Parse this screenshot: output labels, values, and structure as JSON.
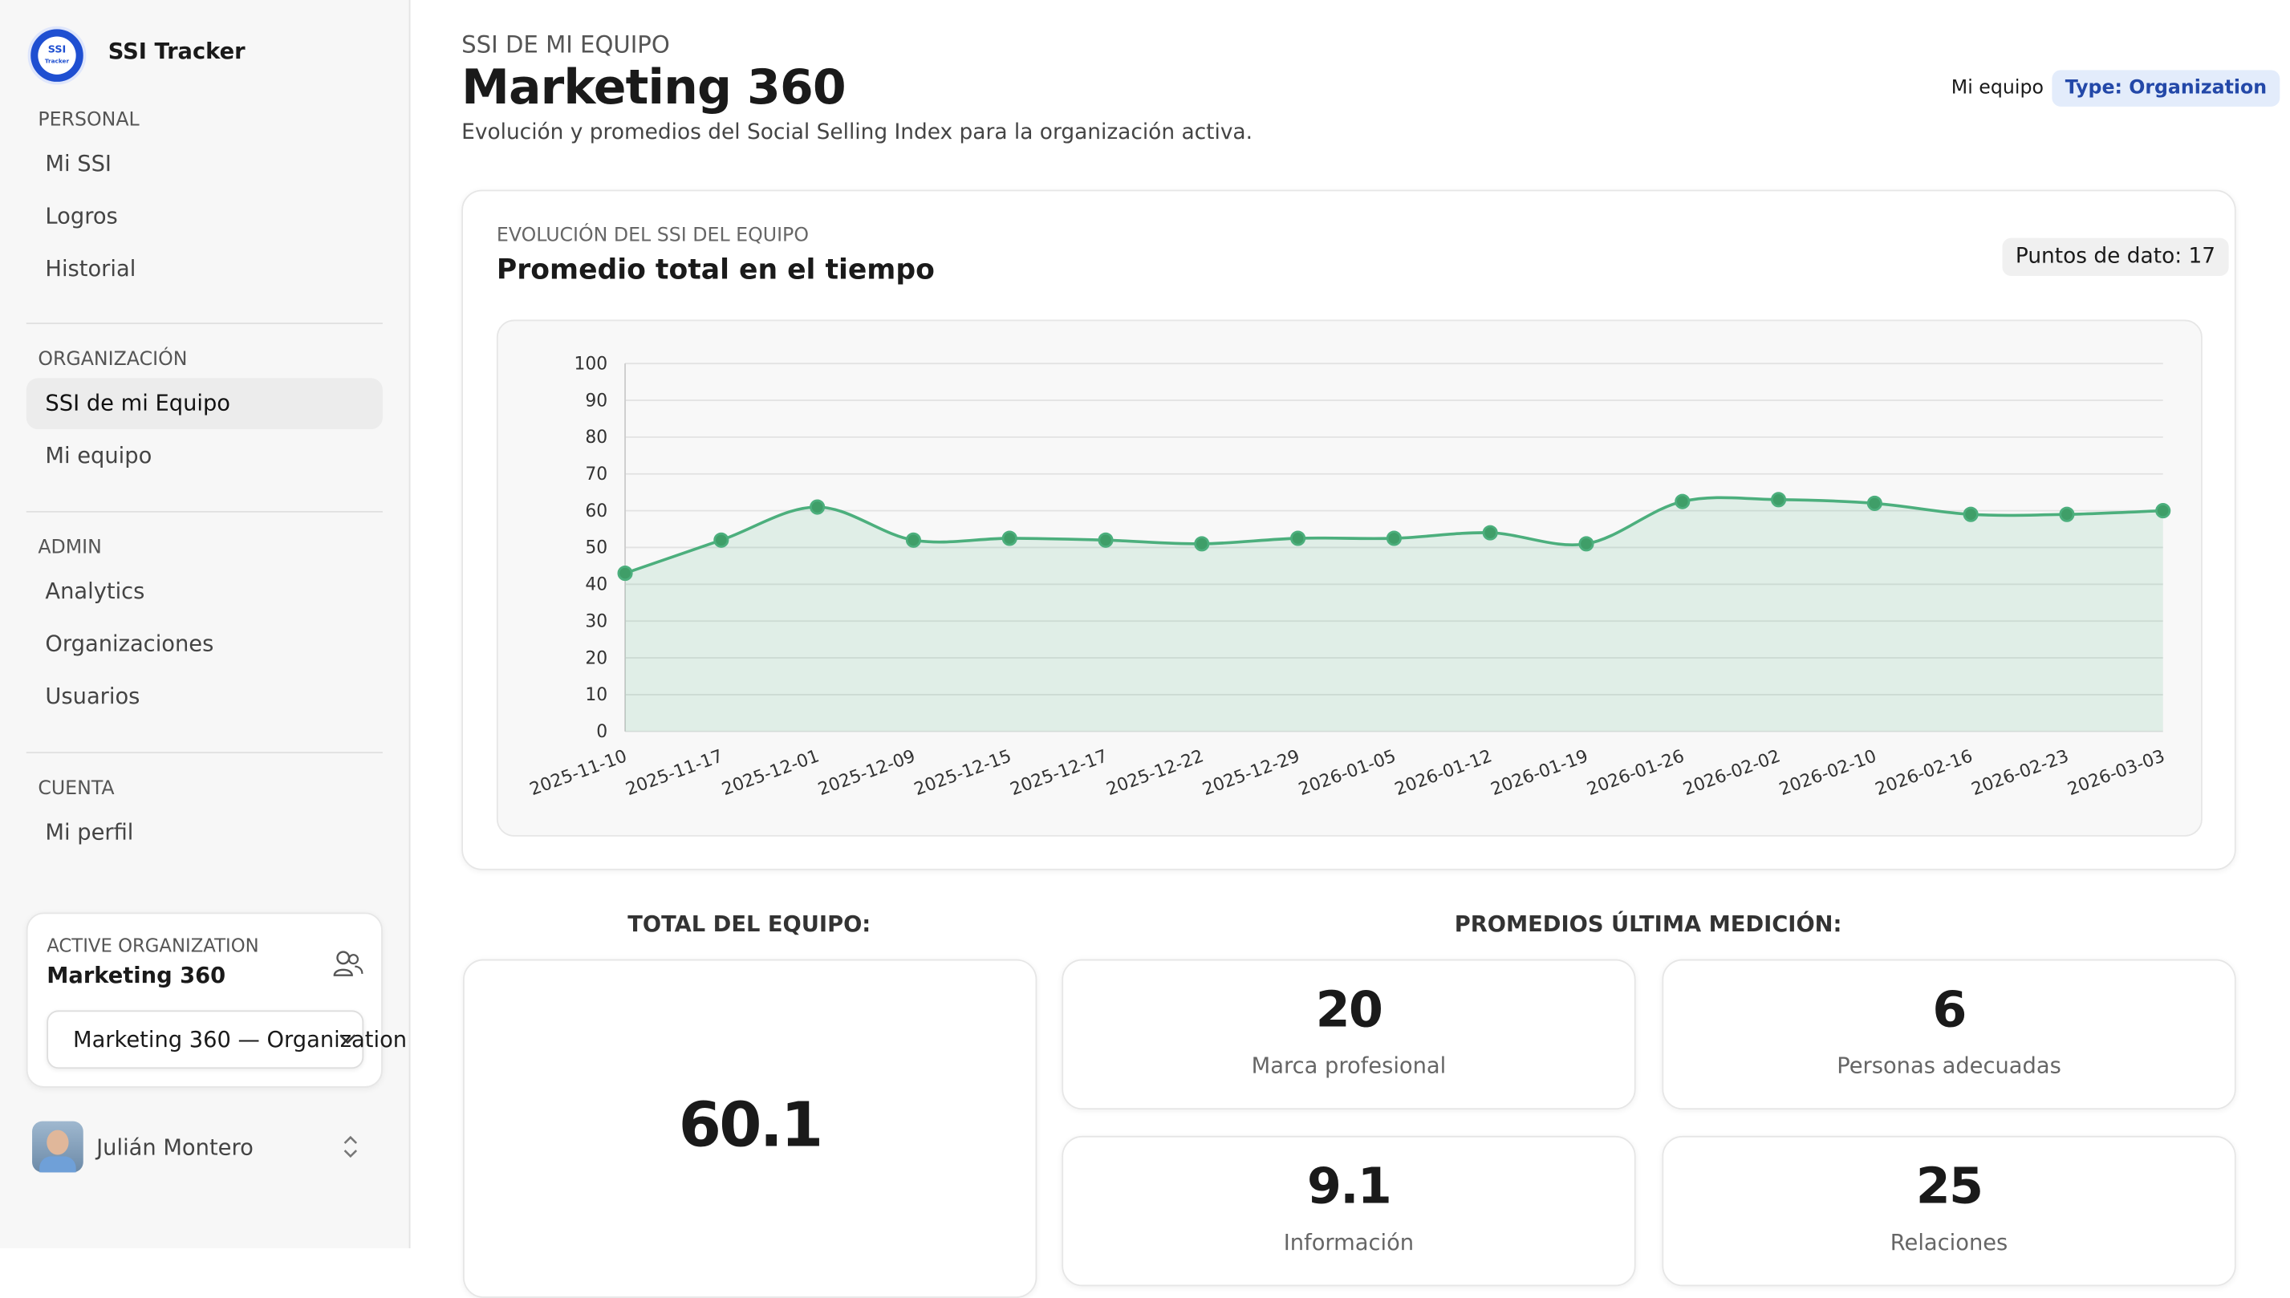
{
  "sidebar": {
    "logo": [
      "SSI",
      "Tracker"
    ],
    "brand": "SSI Tracker",
    "sections": [
      {
        "title": "PERSONAL",
        "items": [
          "Mi SSI",
          "Logros",
          "Historial"
        ]
      },
      {
        "title": "ORGANIZACIÓN",
        "items": [
          "SSI de mi Equipo",
          "Mi equipo"
        ]
      },
      {
        "title": "ADMIN",
        "items": [
          "Analytics",
          "Organizaciones",
          "Usuarios"
        ]
      },
      {
        "title": "CUENTA",
        "items": [
          "Mi perfil"
        ]
      }
    ],
    "active_org": {
      "label": "ACTIVE ORGANIZATION",
      "name": "Marketing 360",
      "select": "Marketing 360 — Organization"
    },
    "user": "Julián Montero"
  },
  "header": {
    "eyebrow": "SSI DE MI EQUIPO",
    "title": "Marketing 360",
    "subtitle": "Evolución y promedios del Social Selling Index para la organización activa.",
    "link": "Mi equipo",
    "badge": "Type: Organization"
  },
  "chart_data": {
    "type": "line",
    "eyebrow": "EVOLUCIÓN DEL SSI DEL EQUIPO",
    "title": "Promedio total en el tiempo",
    "badge": "Puntos de dato: 17",
    "categories": [
      "2025-11-10",
      "2025-11-17",
      "2025-12-01",
      "2025-12-09",
      "2025-12-15",
      "2025-12-17",
      "2025-12-22",
      "2025-12-29",
      "2026-01-05",
      "2026-01-12",
      "2026-01-19",
      "2026-01-26",
      "2026-02-02",
      "2026-02-10",
      "2026-02-16",
      "2026-02-23",
      "2026-03-03"
    ],
    "values": [
      43,
      52,
      61,
      52,
      52.5,
      52,
      51,
      52.5,
      52.5,
      54,
      51,
      62.5,
      63,
      62,
      59,
      59,
      60
    ],
    "color": "#4caf7d",
    "ylim": [
      0,
      100
    ],
    "yticks": [
      0,
      10,
      20,
      30,
      40,
      50,
      60,
      70,
      80,
      90,
      100
    ],
    "grid": true
  },
  "summary": {
    "total_label": "TOTAL DEL EQUIPO:",
    "total": 60.1,
    "averages_label": "PROMEDIOS ÚLTIMA MEDICIÓN:",
    "metrics": [
      {
        "value": 20,
        "label": "Marca profesional"
      },
      {
        "value": 6,
        "label": "Personas adecuadas"
      },
      {
        "value": 9.1,
        "label": "Información"
      },
      {
        "value": 25,
        "label": "Relaciones"
      }
    ]
  }
}
